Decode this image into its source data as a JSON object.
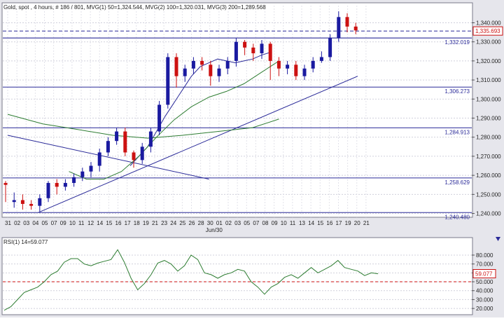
{
  "chart_data": [
    {
      "type": "candlestick",
      "header": "Gold, spot , 4 hours, # 186 / 801, MVG(1) 50=1,324.544, MVG(2) 100=1,320.031, MVG(3) 200=1,289.568",
      "ylim": [
        1238,
        1349
      ],
      "y_ticks": [
        "1,340.000",
        "1,330.000",
        "1,320.000",
        "1,310.000",
        "1,300.000",
        "1,290.000",
        "1,280.000",
        "1,270.000",
        "1,260.000",
        "1,250.000",
        "1,240.000"
      ],
      "y_tick_values": [
        1340,
        1330,
        1320,
        1310,
        1300,
        1290,
        1280,
        1270,
        1260,
        1250,
        1240
      ],
      "x_tick_labels": [
        "31",
        "02",
        "03",
        "04",
        "05",
        "07",
        "09",
        "10",
        "11",
        "12",
        "14",
        "15",
        "16",
        "17",
        "18",
        "19",
        "21",
        "23",
        "24",
        "25",
        "26",
        "28",
        "30",
        "01",
        "02",
        "03",
        "05",
        "07",
        "08",
        "09",
        "10",
        "11",
        "13",
        "14",
        "15",
        "16",
        "17",
        "19",
        "20",
        "21"
      ],
      "x_month_label": "Jun/30",
      "x_month_label_index": 22,
      "current_price": "1,335.693",
      "current_price_value": 1335.693,
      "horizontal_levels": [
        {
          "value": 1332.019,
          "label": "1,332.019"
        },
        {
          "value": 1306.273,
          "label": "1,306.273"
        },
        {
          "value": 1284.913,
          "label": "1,284.913"
        },
        {
          "value": 1258.629,
          "label": "1,258.629"
        },
        {
          "value": 1240.48,
          "label": "1,240.480"
        }
      ],
      "trendlines": [
        {
          "from": {
            "i": 0,
            "y": 1281
          },
          "to": {
            "i": 23,
            "y": 1258
          }
        },
        {
          "from": {
            "i": 3.5,
            "y": 1240.5
          },
          "to": {
            "i": 40,
            "y": 1312
          }
        }
      ],
      "ma_lines": [
        {
          "name": "MVG(1) 50",
          "color": "#2b2b99",
          "points": [
            [
              14,
              1265
            ],
            [
              15,
              1270
            ],
            [
              16,
              1275
            ],
            [
              17,
              1283
            ],
            [
              18,
              1291
            ],
            [
              19,
              1298
            ],
            [
              20,
              1305
            ],
            [
              21,
              1312
            ],
            [
              22,
              1317
            ],
            [
              23,
              1319
            ],
            [
              24,
              1321
            ],
            [
              25,
              1320
            ],
            [
              26,
              1319
            ],
            [
              27,
              1320
            ],
            [
              28,
              1321
            ],
            [
              29,
              1323
            ],
            [
              30,
              1324.5
            ]
          ]
        },
        {
          "name": "MVG(2) 100",
          "color": "#2e7d32",
          "points": [
            [
              7,
              1262
            ],
            [
              9,
              1258
            ],
            [
              11,
              1258
            ],
            [
              13,
              1262
            ],
            [
              15,
              1270
            ],
            [
              17,
              1280
            ],
            [
              19,
              1289
            ],
            [
              21,
              1296
            ],
            [
              23,
              1301
            ],
            [
              25,
              1304
            ],
            [
              27,
              1308
            ],
            [
              29,
              1314
            ],
            [
              30,
              1317
            ],
            [
              31,
              1320
            ]
          ]
        },
        {
          "name": "MVG(3) 200",
          "color": "#2e7d32",
          "points": [
            [
              0,
              1292
            ],
            [
              4,
              1287
            ],
            [
              8,
              1284
            ],
            [
              12,
              1281
            ],
            [
              16,
              1279.5
            ],
            [
              20,
              1281
            ],
            [
              24,
              1283
            ],
            [
              28,
              1285
            ],
            [
              31,
              1289.5
            ]
          ]
        }
      ],
      "candles": [
        [
          1256,
          1255,
          1246,
          1257
        ],
        [
          1246,
          1247,
          1243,
          1251
        ],
        [
          1247,
          1245,
          1242,
          1250
        ],
        [
          1245,
          1244,
          1242,
          1247
        ],
        [
          1244,
          1248,
          1241,
          1250
        ],
        [
          1248,
          1256,
          1246,
          1257
        ],
        [
          1256,
          1254,
          1250,
          1258
        ],
        [
          1254,
          1256,
          1252,
          1258
        ],
        [
          1256,
          1259,
          1254,
          1261
        ],
        [
          1259,
          1262,
          1257,
          1264
        ],
        [
          1262,
          1265,
          1259,
          1267
        ],
        [
          1265,
          1272,
          1262,
          1274
        ],
        [
          1272,
          1278,
          1270,
          1280
        ],
        [
          1278,
          1283,
          1276,
          1285
        ],
        [
          1283,
          1272,
          1270,
          1285
        ],
        [
          1272,
          1268,
          1264,
          1273
        ],
        [
          1268,
          1275,
          1266,
          1277
        ],
        [
          1275,
          1283,
          1272,
          1285
        ],
        [
          1283,
          1297,
          1281,
          1299
        ],
        [
          1297,
          1322,
          1295,
          1324
        ],
        [
          1322,
          1312,
          1306,
          1324
        ],
        [
          1312,
          1316,
          1309,
          1318
        ],
        [
          1316,
          1320,
          1313,
          1322
        ],
        [
          1320,
          1318,
          1315,
          1322
        ],
        [
          1318,
          1312,
          1307,
          1320
        ],
        [
          1312,
          1316,
          1309,
          1318
        ],
        [
          1316,
          1320,
          1313,
          1322
        ],
        [
          1320,
          1330,
          1317,
          1332
        ],
        [
          1330,
          1327,
          1323,
          1331
        ],
        [
          1327,
          1324,
          1320,
          1329
        ],
        [
          1324,
          1329,
          1321,
          1331
        ],
        [
          1329,
          1320,
          1310,
          1330
        ],
        [
          1320,
          1316,
          1312,
          1322
        ],
        [
          1316,
          1318,
          1313,
          1320
        ],
        [
          1318,
          1312,
          1310,
          1320
        ],
        [
          1312,
          1316,
          1310,
          1318
        ],
        [
          1316,
          1320,
          1314,
          1322
        ],
        [
          1320,
          1322,
          1319,
          1325
        ],
        [
          1322,
          1332,
          1320,
          1334
        ],
        [
          1332,
          1343,
          1330,
          1346
        ],
        [
          1343,
          1338,
          1335,
          1345
        ],
        [
          1338,
          1336,
          1334,
          1340
        ]
      ]
    },
    {
      "type": "line",
      "header": "RSI(1) 14=59.077",
      "ylim": [
        13,
        91
      ],
      "y_ticks": [
        "80.000",
        "70.000",
        "60.000",
        "50.000",
        "40.000",
        "30.000",
        "20.000"
      ],
      "y_tick_values": [
        80,
        70,
        60,
        50,
        40,
        30,
        20
      ],
      "current_value": "59.077",
      "current_value_num": 59.077,
      "reference_level": 50,
      "values": [
        18,
        22,
        30,
        38,
        41,
        44,
        50,
        58,
        62,
        72,
        76,
        76,
        70,
        68,
        71,
        73,
        75,
        86,
        72,
        54,
        41,
        48,
        58,
        71,
        74,
        70,
        62,
        68,
        80,
        75,
        60,
        58,
        54,
        58,
        60,
        64,
        62,
        50,
        44,
        36,
        44,
        48,
        55,
        58,
        54,
        60,
        66,
        60,
        64,
        68,
        74,
        66,
        64,
        62,
        57,
        60,
        59
      ]
    }
  ]
}
